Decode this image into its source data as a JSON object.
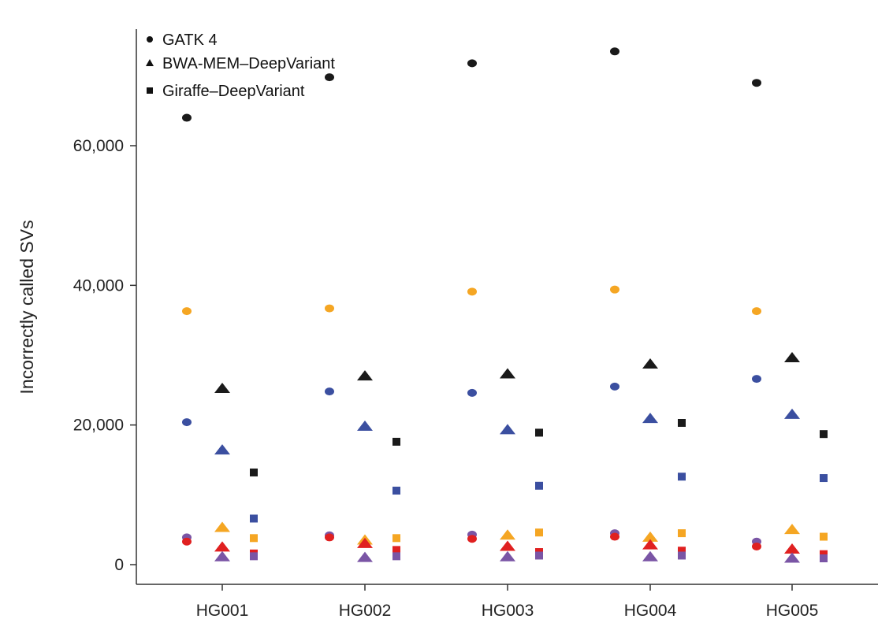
{
  "chart_data": {
    "type": "scatter",
    "title": "",
    "xlabel": "",
    "ylabel": "Incorrectly called SVs",
    "ylim": [
      0,
      75000
    ],
    "yticks": [
      0,
      20000,
      40000,
      60000
    ],
    "ytick_labels": [
      "0",
      "20,000",
      "40,000",
      "60,000"
    ],
    "categories": [
      "HG001",
      "HG002",
      "HG003",
      "HG004",
      "HG005"
    ],
    "legend": [
      {
        "label": "GATK 4",
        "marker": "circle"
      },
      {
        "label": "BWA-MEM–DeepVariant",
        "marker": "triangle"
      },
      {
        "label": "Giraffe–DeepVariant",
        "marker": "square"
      }
    ],
    "colors": {
      "black": "#1a1a1a",
      "orange": "#f5a623",
      "blue": "#3b4fa0",
      "purple": "#7a55a5",
      "red": "#e02020"
    },
    "series": [
      {
        "name": "GATK 4 (black)",
        "marker": "circle",
        "color": "black",
        "values": [
          64000,
          69800,
          71800,
          73500,
          69000
        ]
      },
      {
        "name": "GATK 4 (orange)",
        "marker": "circle",
        "color": "orange",
        "values": [
          36300,
          36700,
          39100,
          39400,
          36300
        ]
      },
      {
        "name": "GATK 4 (blue)",
        "marker": "circle",
        "color": "blue",
        "values": [
          20400,
          24800,
          24600,
          25500,
          26600
        ]
      },
      {
        "name": "GATK 4 (purple)",
        "marker": "circle",
        "color": "purple",
        "values": [
          3900,
          4200,
          4300,
          4500,
          3300
        ]
      },
      {
        "name": "GATK 4 (red)",
        "marker": "circle",
        "color": "red",
        "values": [
          3300,
          3900,
          3700,
          4000,
          2600
        ]
      },
      {
        "name": "BWA-MEM–DeepVariant (black)",
        "marker": "triangle",
        "color": "black",
        "values": [
          25200,
          27000,
          27300,
          28700,
          29600
        ]
      },
      {
        "name": "BWA-MEM–DeepVariant (blue)",
        "marker": "triangle",
        "color": "blue",
        "values": [
          16400,
          19800,
          19300,
          20900,
          21500
        ]
      },
      {
        "name": "BWA-MEM–DeepVariant (orange)",
        "marker": "triangle",
        "color": "orange",
        "values": [
          5300,
          3500,
          4200,
          3900,
          5000
        ]
      },
      {
        "name": "BWA-MEM–DeepVariant (red)",
        "marker": "triangle",
        "color": "red",
        "values": [
          2500,
          3000,
          2600,
          2800,
          2200
        ]
      },
      {
        "name": "BWA-MEM–DeepVariant (purple)",
        "marker": "triangle",
        "color": "purple",
        "values": [
          1100,
          1000,
          1100,
          1100,
          900
        ]
      },
      {
        "name": "Giraffe–DeepVariant (black)",
        "marker": "square",
        "color": "black",
        "values": [
          13200,
          17600,
          18900,
          20300,
          18700
        ]
      },
      {
        "name": "Giraffe–DeepVariant (blue)",
        "marker": "square",
        "color": "blue",
        "values": [
          6600,
          10600,
          11300,
          12600,
          12400
        ]
      },
      {
        "name": "Giraffe–DeepVariant (orange)",
        "marker": "square",
        "color": "orange",
        "values": [
          3800,
          3800,
          4600,
          4500,
          4000
        ]
      },
      {
        "name": "Giraffe–DeepVariant (red)",
        "marker": "square",
        "color": "red",
        "values": [
          1600,
          2100,
          1800,
          2000,
          1500
        ]
      },
      {
        "name": "Giraffe–DeepVariant (purple)",
        "marker": "square",
        "color": "purple",
        "values": [
          1200,
          1200,
          1300,
          1300,
          900
        ]
      }
    ]
  }
}
